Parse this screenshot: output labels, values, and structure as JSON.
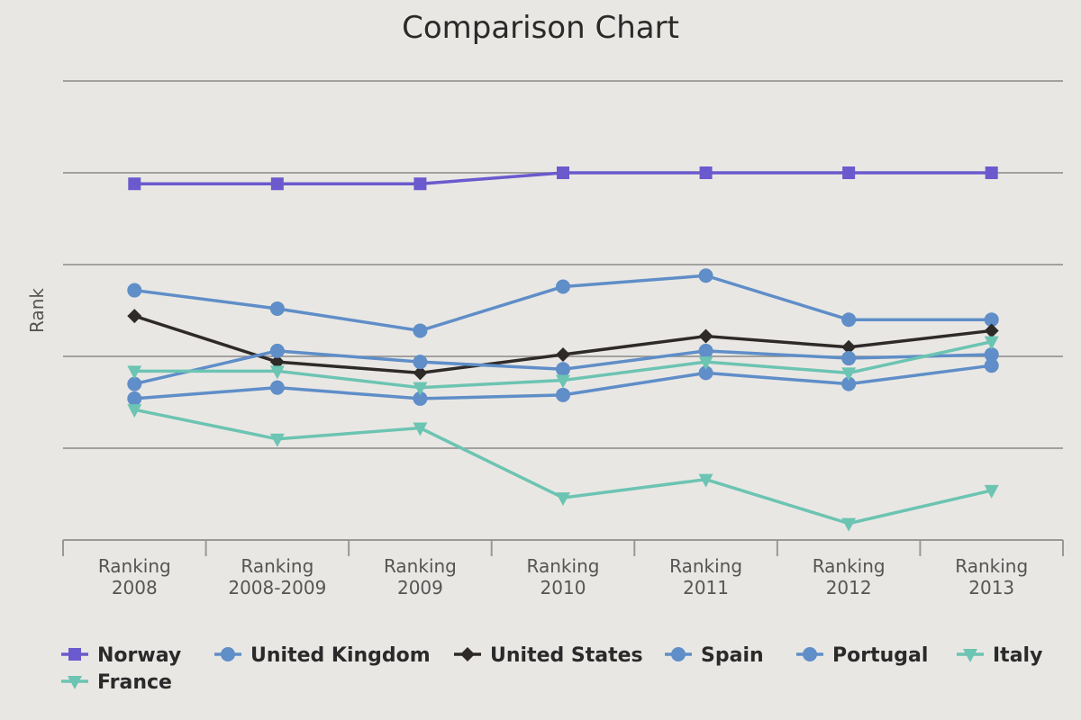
{
  "chart_data": {
    "type": "line",
    "title": "Comparison Chart",
    "xlabel": "",
    "ylabel": "Rank",
    "ylim": [
      0,
      5
    ],
    "y_tick_labels_shown": false,
    "grid": true,
    "legend_position": "bottom",
    "categories": [
      [
        "Ranking",
        "2008"
      ],
      [
        "Ranking",
        "2008-2009"
      ],
      [
        "Ranking",
        "2009"
      ],
      [
        "Ranking",
        "2010"
      ],
      [
        "Ranking",
        "2011"
      ],
      [
        "Ranking",
        "2012"
      ],
      [
        "Ranking",
        "2013"
      ]
    ],
    "series": [
      {
        "name": "Norway",
        "color": "#6a5acd",
        "marker": "square",
        "values": [
          3.88,
          3.88,
          3.88,
          4.0,
          4.0,
          4.0,
          4.0
        ]
      },
      {
        "name": "United Kingdom",
        "color": "#5f8ec8",
        "marker": "circle",
        "values": [
          2.72,
          2.52,
          2.28,
          2.76,
          2.88,
          2.4,
          2.4
        ]
      },
      {
        "name": "United States",
        "color": "#2e2a28",
        "marker": "diamond",
        "values": [
          2.44,
          1.94,
          1.82,
          2.02,
          2.22,
          2.1,
          2.28
        ]
      },
      {
        "name": "Spain",
        "color": "#5f8ec8",
        "marker": "circle",
        "values": [
          1.7,
          2.06,
          1.94,
          1.86,
          2.06,
          1.98,
          2.02
        ]
      },
      {
        "name": "Portugal",
        "color": "#5f8ec8",
        "marker": "circle",
        "values": [
          1.54,
          1.66,
          1.54,
          1.58,
          1.82,
          1.7,
          1.9
        ]
      },
      {
        "name": "Italy",
        "color": "#6cc4b2",
        "marker": "triangle-down",
        "values": [
          1.84,
          1.84,
          1.66,
          1.74,
          1.94,
          1.82,
          2.16
        ]
      },
      {
        "name": "France",
        "color": "#6cc4b2",
        "marker": "triangle-down",
        "values": [
          1.42,
          1.1,
          1.22,
          0.46,
          0.66,
          0.18,
          0.54
        ]
      }
    ]
  }
}
